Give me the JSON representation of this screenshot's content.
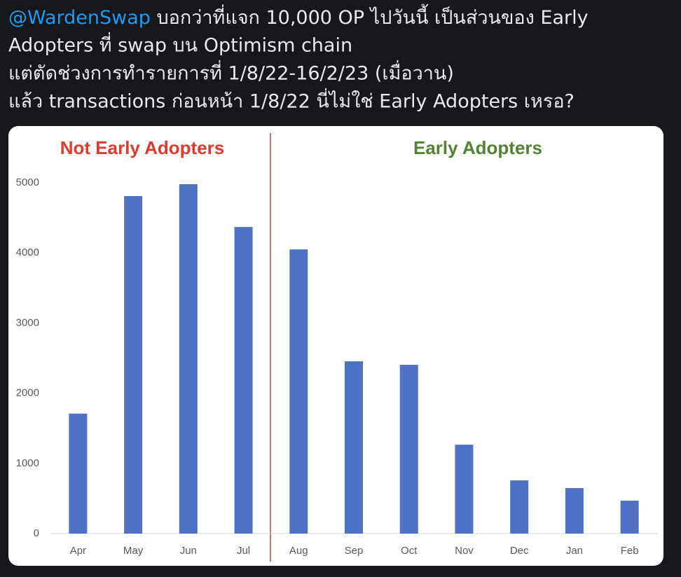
{
  "tweet": {
    "mention": "@WardenSwap",
    "lines": [
      "บอกว่าที่แจก 10,000 OP ไปวันนี้ เป็นส่วนของ Early",
      "Adopters ที่ swap บน Optimism chain",
      "แต่ตัดช่วงการทำรายการที่ 1/8/22-16/2/23 (เมื่อวาน)",
      "แล้ว transactions ก่อนหน้า 1/8/22 นี่ไม่ใช่ Early Adopters เหรอ?"
    ]
  },
  "chart_data": {
    "type": "bar",
    "annotations": [
      {
        "text": "Not Early Adopters",
        "color": "#e03a2e"
      },
      {
        "text": "Early Adopters",
        "color": "#548235"
      }
    ],
    "categories": [
      "Apr",
      "May",
      "Jun",
      "Jul",
      "Aug",
      "Sep",
      "Oct",
      "Nov",
      "Dec",
      "Jan",
      "Feb"
    ],
    "values": [
      1710,
      4810,
      4980,
      4370,
      4050,
      2455,
      2405,
      1267,
      758,
      649,
      469
    ],
    "color": "#4f72c4",
    "ylim": [
      0,
      5000
    ],
    "yticks": [
      0,
      1000,
      2000,
      3000,
      4000,
      5000
    ],
    "grid": false
  }
}
